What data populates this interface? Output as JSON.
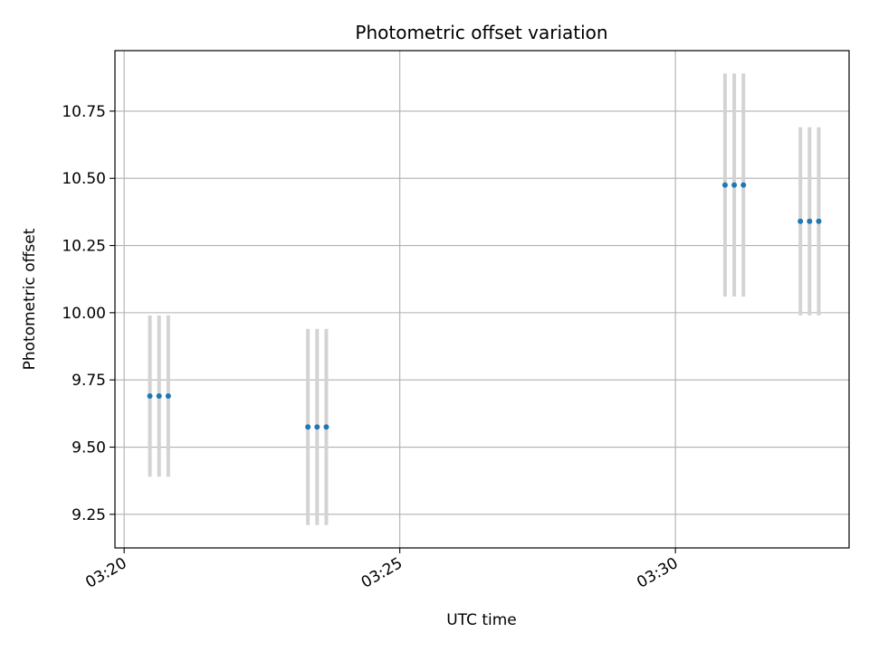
{
  "chart_data": {
    "type": "scatter",
    "title": "Photometric offset variation",
    "xlabel": "UTC time",
    "ylabel": "Photometric offset",
    "x_axis": {
      "kind": "time",
      "lim": [
        "03:19:50",
        "03:33:09"
      ],
      "ticks": [
        "03:20:00",
        "03:25:00",
        "03:30:00"
      ],
      "tick_labels": [
        "03:20",
        "03:25",
        "03:30"
      ],
      "tick_label_rotation": "30 degrees"
    },
    "y_axis": {
      "lim": [
        9.125,
        10.975
      ],
      "ticks": [
        9.25,
        9.5,
        9.75,
        10.0,
        10.25,
        10.5,
        10.75
      ],
      "tick_labels": [
        "9.25",
        "9.50",
        "9.75",
        "10.00",
        "10.25",
        "10.50",
        "10.75"
      ]
    },
    "grid": true,
    "legend": "none",
    "colors": {
      "points": "#1f77b4",
      "error_bars": "#d3d3d3",
      "grid": "#b0b0b0"
    },
    "points": [
      {
        "time": "03:20:28",
        "y": 9.69,
        "yerr": 0.3
      },
      {
        "time": "03:20:38",
        "y": 9.69,
        "yerr": 0.3
      },
      {
        "time": "03:20:48",
        "y": 9.69,
        "yerr": 0.3
      },
      {
        "time": "03:23:20",
        "y": 9.575,
        "yerr": 0.365
      },
      {
        "time": "03:23:30",
        "y": 9.575,
        "yerr": 0.365
      },
      {
        "time": "03:23:40",
        "y": 9.575,
        "yerr": 0.365
      },
      {
        "time": "03:30:54",
        "y": 10.475,
        "yerr": 0.415
      },
      {
        "time": "03:31:04",
        "y": 10.475,
        "yerr": 0.415
      },
      {
        "time": "03:31:14",
        "y": 10.475,
        "yerr": 0.415
      },
      {
        "time": "03:32:16",
        "y": 10.34,
        "yerr": 0.35
      },
      {
        "time": "03:32:26",
        "y": 10.34,
        "yerr": 0.35
      },
      {
        "time": "03:32:36",
        "y": 10.34,
        "yerr": 0.35
      }
    ]
  }
}
